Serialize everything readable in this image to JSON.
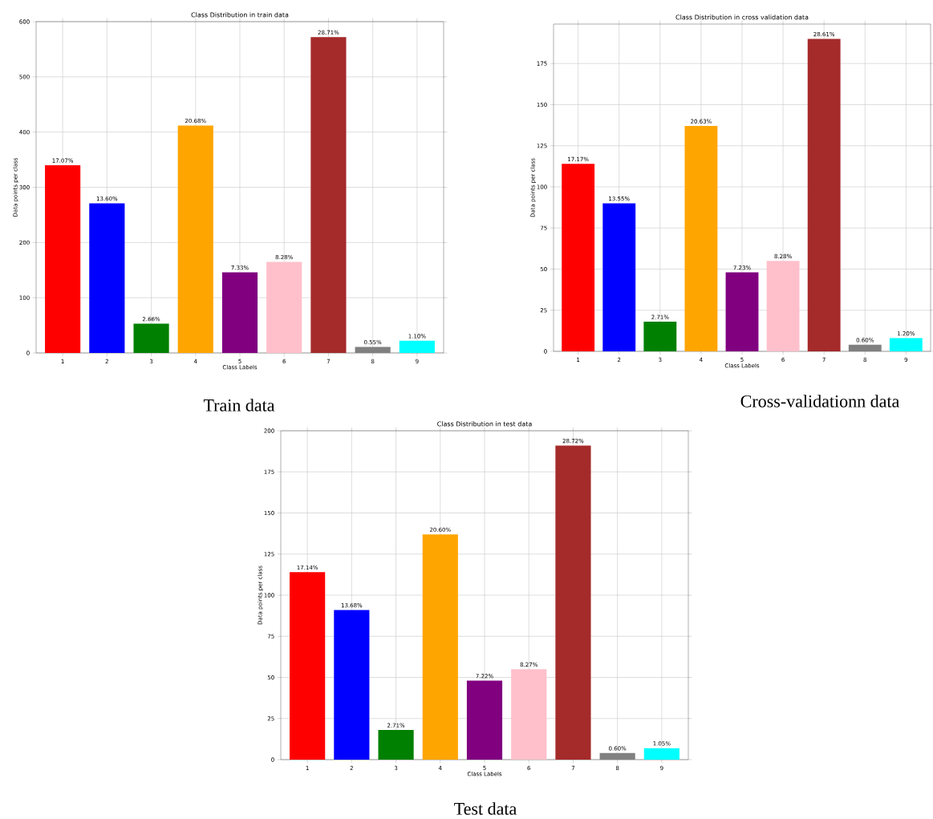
{
  "chart_data": [
    {
      "type": "bar",
      "title": "Class Distribution in train data",
      "xlabel": "Class Labels",
      "ylabel": "Data points per class",
      "categories": [
        "1",
        "2",
        "3",
        "4",
        "5",
        "6",
        "7",
        "8",
        "9"
      ],
      "values": [
        340,
        271,
        53,
        412,
        146,
        165,
        572,
        11,
        22
      ],
      "colors": [
        "#ff0000",
        "#0000ff",
        "#008000",
        "#ffa500",
        "#800080",
        "#ffc0cb",
        "#a52a2a",
        "#808080",
        "#00ffff"
      ],
      "ylim": [
        0,
        600
      ],
      "yticks": [
        0,
        100,
        200,
        300,
        400,
        500,
        600
      ],
      "grid": true,
      "annotations": [
        "Train data",
        {
          "text": "17.07%",
          "x": "1",
          "y": 340
        },
        {
          "text": "13.60%",
          "x": "2",
          "y": 271
        },
        {
          "text": "2.66%",
          "x": "3",
          "y": 53
        },
        {
          "text": "20.68%",
          "x": "4",
          "y": 412
        },
        {
          "text": "7.33%",
          "x": "5",
          "y": 146
        },
        {
          "text": "8.28%",
          "x": "6",
          "y": 165
        },
        {
          "text": "28.71%",
          "x": "7",
          "y": 572
        },
        {
          "text": "0.55%",
          "x": "8",
          "y": 11
        },
        {
          "text": "1.10%",
          "x": "9",
          "y": 22
        }
      ]
    },
    {
      "type": "bar",
      "title": "Class Distribution in cross validation data",
      "xlabel": "Class Labels",
      "ylabel": "Data points per class",
      "categories": [
        "1",
        "2",
        "3",
        "4",
        "5",
        "6",
        "7",
        "8",
        "9"
      ],
      "values": [
        114,
        90,
        18,
        137,
        48,
        55,
        190,
        4,
        8
      ],
      "colors": [
        "#ff0000",
        "#0000ff",
        "#008000",
        "#ffa500",
        "#800080",
        "#ffc0cb",
        "#a52a2a",
        "#808080",
        "#00ffff"
      ],
      "ylim": [
        0,
        199
      ],
      "yticks": [
        0,
        25,
        50,
        75,
        100,
        125,
        150,
        175
      ],
      "grid": true,
      "annotations": [
        "Cross-validationn data",
        {
          "text": "17.17%",
          "x": "1",
          "y": 114
        },
        {
          "text": "13.55%",
          "x": "2",
          "y": 90
        },
        {
          "text": "2.71%",
          "x": "3",
          "y": 18
        },
        {
          "text": "20.63%",
          "x": "4",
          "y": 137
        },
        {
          "text": "7.23%",
          "x": "5",
          "y": 48
        },
        {
          "text": "8.28%",
          "x": "6",
          "y": 55
        },
        {
          "text": "28.61%",
          "x": "7",
          "y": 190
        },
        {
          "text": "0.60%",
          "x": "8",
          "y": 4
        },
        {
          "text": "1.20%",
          "x": "9",
          "y": 8
        }
      ]
    },
    {
      "type": "bar",
      "title": "Class Distribution in test data",
      "xlabel": "Class Labels",
      "ylabel": "Data points per class",
      "categories": [
        "1",
        "2",
        "3",
        "4",
        "5",
        "6",
        "7",
        "8",
        "9"
      ],
      "values": [
        114,
        91,
        18,
        137,
        48,
        55,
        191,
        4,
        7
      ],
      "colors": [
        "#ff0000",
        "#0000ff",
        "#008000",
        "#ffa500",
        "#800080",
        "#ffc0cb",
        "#a52a2a",
        "#808080",
        "#00ffff"
      ],
      "ylim": [
        0,
        200
      ],
      "yticks": [
        0,
        25,
        50,
        75,
        100,
        125,
        150,
        175,
        200
      ],
      "grid": true,
      "annotations": [
        "Test data",
        {
          "text": "17.14%",
          "x": "1",
          "y": 114
        },
        {
          "text": "13.68%",
          "x": "2",
          "y": 91
        },
        {
          "text": "2.71%",
          "x": "3",
          "y": 18
        },
        {
          "text": "20.60%",
          "x": "4",
          "y": 137
        },
        {
          "text": "7.22%",
          "x": "5",
          "y": 48
        },
        {
          "text": "8.27%",
          "x": "6",
          "y": 55
        },
        {
          "text": "28.72%",
          "x": "7",
          "y": 191
        },
        {
          "text": "0.60%",
          "x": "8",
          "y": 4
        },
        {
          "text": "1.05%",
          "x": "9",
          "y": 7
        }
      ]
    }
  ]
}
